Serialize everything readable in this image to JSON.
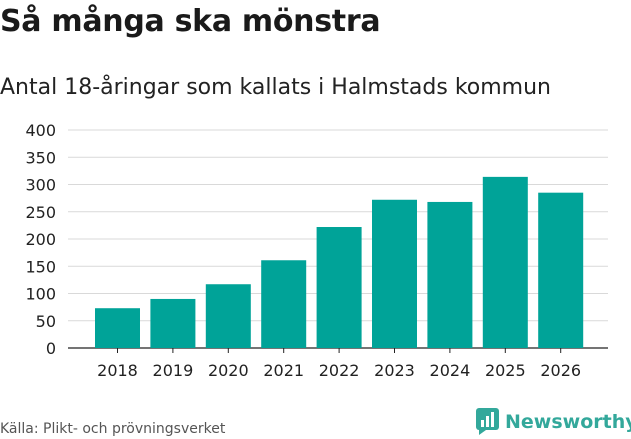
{
  "title": "Så många ska mönstra",
  "subtitle": "Antal 18-åringar som kallats i Halmstads kommun",
  "source": "Källa: Plikt- och prövningsverket",
  "brand": {
    "name": "Newsworthy",
    "icon": "newsworthy-logo-icon",
    "color": "#33a89b"
  },
  "colors": {
    "bar": "#00a398",
    "grid": "#d9d9d9",
    "axis": "#222222"
  },
  "chart_data": {
    "type": "bar",
    "title": "Så många ska mönstra",
    "subtitle": "Antal 18-åringar som kallats i Halmstads kommun",
    "xlabel": "",
    "ylabel": "",
    "categories": [
      "2018",
      "2019",
      "2020",
      "2021",
      "2022",
      "2023",
      "2024",
      "2025",
      "2026"
    ],
    "values": [
      73,
      90,
      117,
      161,
      222,
      272,
      268,
      314,
      285
    ],
    "ylim": [
      0,
      400
    ],
    "yticks": [
      0,
      50,
      100,
      150,
      200,
      250,
      300,
      350,
      400
    ],
    "grid": true,
    "legend": "none"
  }
}
